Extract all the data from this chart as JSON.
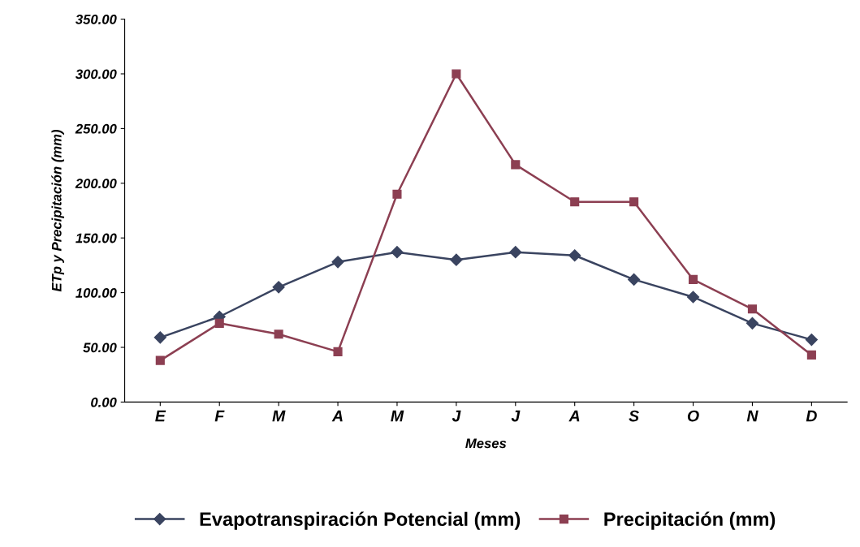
{
  "chart_data": {
    "type": "line",
    "xlabel": "Meses",
    "ylabel": "ETp y Precipitación (mm)",
    "categories": [
      "E",
      "F",
      "M",
      "A",
      "M",
      "J",
      "J",
      "A",
      "S",
      "O",
      "N",
      "D"
    ],
    "series": [
      {
        "name": "Evapotranspiración Potencial (mm)",
        "color": "#3a4460",
        "marker": "diamond",
        "values": [
          59,
          78,
          105,
          128,
          137,
          130,
          137,
          134,
          112,
          96,
          72,
          57
        ]
      },
      {
        "name": "Precipitación (mm)",
        "color": "#8c3f52",
        "marker": "square",
        "values": [
          38,
          72,
          62,
          46,
          190,
          300,
          217,
          183,
          183,
          112,
          85,
          43
        ]
      }
    ],
    "ylim": [
      0,
      350
    ],
    "yticks": [
      {
        "value": 0,
        "label": "0.00"
      },
      {
        "value": 50,
        "label": "50.00"
      },
      {
        "value": 100,
        "label": "100.00"
      },
      {
        "value": 150,
        "label": "150.00"
      },
      {
        "value": 200,
        "label": "200.00"
      },
      {
        "value": 250,
        "label": "250.00"
      },
      {
        "value": 300,
        "label": "300.00"
      },
      {
        "value": 350,
        "label": "350.00"
      }
    ],
    "grid": false,
    "legend": "bottom",
    "line_style": "solid"
  }
}
